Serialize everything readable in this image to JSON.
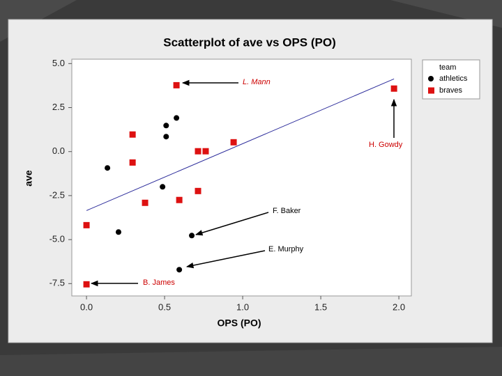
{
  "chart_data": {
    "type": "scatter",
    "title": "Scatterplot of ave vs OPS (PO)",
    "x_label": "OPS (PO)",
    "y_label": "ave",
    "xlim": [
      -0.094,
      2.08
    ],
    "ylim": [
      -8.2,
      5.25
    ],
    "xticks": [
      {
        "value": 0,
        "label": "0.0"
      },
      0.5,
      {
        "value": 1,
        "label": "1.0"
      },
      1.5,
      {
        "value": 2,
        "label": "2.0"
      }
    ],
    "yticks": [
      {
        "value": 5,
        "label": "5.0"
      },
      2.5,
      {
        "value": 0,
        "label": "0.0"
      },
      -2.5,
      {
        "value": -5,
        "label": "-5.0"
      },
      -7.5
    ],
    "legend_title": "team",
    "legend": "right",
    "series": [
      {
        "name": "athletics",
        "color": "#000000",
        "marker": "circle",
        "x": [
          0.134,
          0.205,
          0.487,
          0.51,
          0.51,
          0.576,
          0.674,
          0.594
        ],
        "values": [
          -0.93,
          -4.57,
          -2.0,
          0.85,
          1.48,
          1.91,
          -4.77,
          -6.71
        ]
      },
      {
        "name": "braves",
        "color": "#dd1111",
        "marker": "square",
        "x": [
          0,
          0,
          0.295,
          0.295,
          0.375,
          0.576,
          0.594,
          0.714,
          0.763,
          0.714,
          0.942,
          1.969
        ],
        "values": [
          -7.54,
          -4.18,
          0.97,
          -0.62,
          -2.91,
          3.77,
          -2.75,
          0.02,
          0.02,
          -2.24,
          0.53,
          3.58
        ]
      }
    ],
    "fit_line": {
      "color": "#2a2a9a",
      "x": [
        0,
        1.969
      ],
      "values": [
        -3.35,
        4.13
      ]
    },
    "annotations": [
      {
        "text": "L. Mann",
        "color": "#cc0000"
      },
      {
        "text": "H. Gowdy",
        "color": "#cc0000"
      },
      {
        "text": "F. Baker",
        "color": "#000000"
      },
      {
        "text": "E. Murphy",
        "color": "#000000"
      },
      {
        "text": "B. James",
        "color": "#cc0000"
      }
    ]
  }
}
